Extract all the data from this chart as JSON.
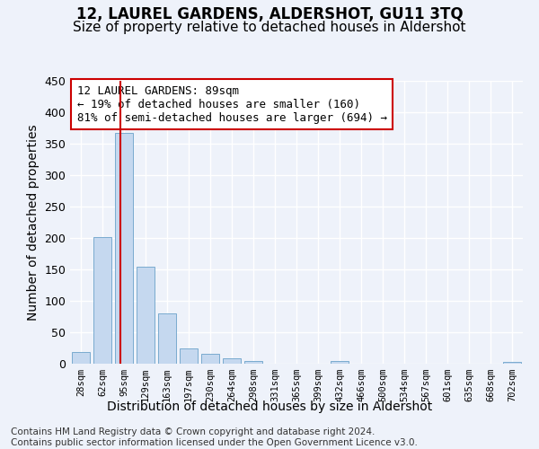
{
  "title": "12, LAUREL GARDENS, ALDERSHOT, GU11 3TQ",
  "subtitle": "Size of property relative to detached houses in Aldershot",
  "xlabel": "Distribution of detached houses by size in Aldershot",
  "ylabel": "Number of detached properties",
  "bar_color": "#c5d8ef",
  "bar_edge_color": "#7aabcf",
  "background_color": "#eef2fa",
  "grid_color": "#ffffff",
  "categories": [
    "28sqm",
    "62sqm",
    "95sqm",
    "129sqm",
    "163sqm",
    "197sqm",
    "230sqm",
    "264sqm",
    "298sqm",
    "331sqm",
    "365sqm",
    "399sqm",
    "432sqm",
    "466sqm",
    "500sqm",
    "534sqm",
    "567sqm",
    "601sqm",
    "635sqm",
    "668sqm",
    "702sqm"
  ],
  "values": [
    18,
    202,
    367,
    155,
    80,
    24,
    16,
    8,
    5,
    0,
    0,
    0,
    4,
    0,
    0,
    0,
    0,
    0,
    0,
    0,
    3
  ],
  "ylim": [
    0,
    450
  ],
  "yticks": [
    0,
    50,
    100,
    150,
    200,
    250,
    300,
    350,
    400,
    450
  ],
  "vline_color": "#cc0000",
  "vline_x": 1.818,
  "annotation_text": "12 LAUREL GARDENS: 89sqm\n← 19% of detached houses are smaller (160)\n81% of semi-detached houses are larger (694) →",
  "annotation_box_color": "#ffffff",
  "annotation_box_edge": "#cc0000",
  "footer_text": "Contains HM Land Registry data © Crown copyright and database right 2024.\nContains public sector information licensed under the Open Government Licence v3.0.",
  "title_fontsize": 12,
  "subtitle_fontsize": 11,
  "xlabel_fontsize": 10,
  "ylabel_fontsize": 10,
  "annotation_fontsize": 9,
  "footer_fontsize": 7.5
}
